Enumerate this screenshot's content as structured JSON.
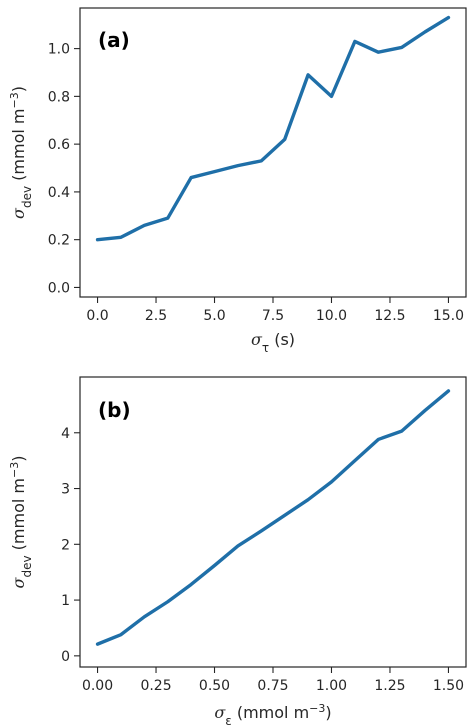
{
  "chart_data": [
    {
      "type": "line",
      "panel_label": "(a)",
      "x": [
        0,
        1,
        2,
        3,
        4,
        5,
        6,
        7,
        8,
        9,
        10,
        11,
        12,
        13,
        14,
        15
      ],
      "series": [
        {
          "values": [
            0.2,
            0.21,
            0.26,
            0.29,
            0.46,
            0.485,
            0.51,
            0.53,
            0.62,
            0.89,
            0.8,
            1.03,
            0.985,
            1.005,
            1.07,
            1.13
          ],
          "color": "#1f6fa8"
        }
      ],
      "xlim": [
        -0.75,
        15.75
      ],
      "ylim": [
        -0.04,
        1.17
      ],
      "xticks": [
        0,
        2.5,
        5,
        7.5,
        10,
        12.5,
        15
      ],
      "xtick_labels": [
        "0.0",
        "2.5",
        "5.0",
        "7.5",
        "10.0",
        "12.5",
        "15.0"
      ],
      "yticks": [
        0,
        0.2,
        0.4,
        0.6,
        0.8,
        1.0
      ],
      "ytick_labels": [
        "0.0",
        "0.2",
        "0.4",
        "0.6",
        "0.8",
        "1.0"
      ],
      "xlabel": {
        "symbol": "σ",
        "sub": "τ",
        "rest": " (s)"
      },
      "ylabel": {
        "symbol": "σ",
        "sub": "dev",
        "rest": " (mmol m",
        "sup": "−3",
        "close": ")"
      },
      "grid": false
    },
    {
      "type": "line",
      "panel_label": "(b)",
      "x": [
        0.0,
        0.1,
        0.2,
        0.3,
        0.4,
        0.5,
        0.6,
        0.7,
        0.8,
        0.9,
        1.0,
        1.1,
        1.2,
        1.3,
        1.4,
        1.5
      ],
      "series": [
        {
          "values": [
            0.21,
            0.38,
            0.7,
            0.97,
            1.28,
            1.62,
            1.97,
            2.24,
            2.52,
            2.8,
            3.12,
            3.5,
            3.88,
            4.03,
            4.4,
            4.75
          ],
          "color": "#1f6fa8"
        }
      ],
      "xlim": [
        -0.075,
        1.575
      ],
      "ylim": [
        -0.2,
        5.0
      ],
      "xticks": [
        0,
        0.25,
        0.5,
        0.75,
        1.0,
        1.25,
        1.5
      ],
      "xtick_labels": [
        "0.00",
        "0.25",
        "0.50",
        "0.75",
        "1.00",
        "1.25",
        "1.50"
      ],
      "yticks": [
        0,
        1,
        2,
        3,
        4
      ],
      "ytick_labels": [
        "0",
        "1",
        "2",
        "3",
        "4"
      ],
      "xlabel": {
        "symbol": "σ",
        "sub": "ε",
        "rest": " (mmol m",
        "sup": "−3",
        "close": ")"
      },
      "ylabel": {
        "symbol": "σ",
        "sub": "dev",
        "rest": " (mmol m",
        "sup": "−3",
        "close": ")"
      },
      "grid": false
    }
  ]
}
